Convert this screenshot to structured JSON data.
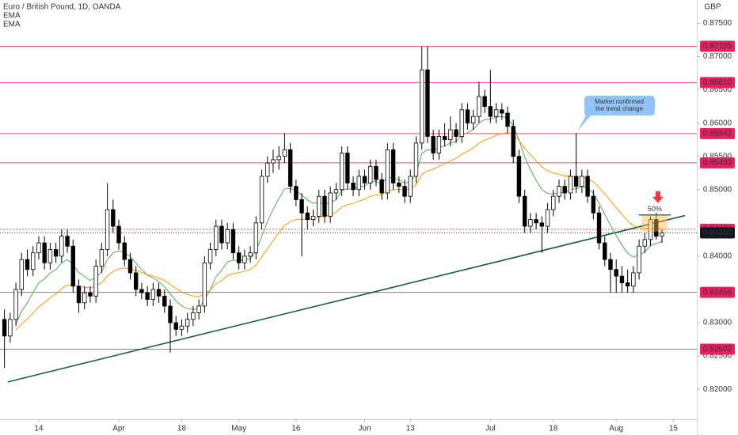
{
  "chart_data": {
    "type": "candlestick",
    "title": "Euro / British Pound, 1D, OANDA",
    "indicators": [
      {
        "name": "EMA",
        "color": "#4caf50"
      },
      {
        "name": "EMA",
        "color": "#ff9800"
      }
    ],
    "currency": "GBP",
    "open": [
      0.8305,
      0.828,
      0.8305,
      0.835,
      0.8395,
      0.838,
      0.8405,
      0.842,
      0.839,
      0.841,
      0.84,
      0.843,
      0.8415,
      0.8355,
      0.833,
      0.8345,
      0.834,
      0.8385,
      0.841,
      0.847,
      0.8445,
      0.842,
      0.8395,
      0.8375,
      0.835,
      0.8345,
      0.8335,
      0.835,
      0.834,
      0.8325,
      0.83,
      0.829,
      0.8295,
      0.8305,
      0.8315,
      0.8325,
      0.839,
      0.841,
      0.8445,
      0.842,
      0.844,
      0.8405,
      0.839,
      0.84,
      0.8405,
      0.845,
      0.852,
      0.854,
      0.8545,
      0.855,
      0.856,
      0.8505,
      0.8485,
      0.8465,
      0.8455,
      0.846,
      0.849,
      0.846,
      0.8495,
      0.85,
      0.8555,
      0.851,
      0.85,
      0.852,
      0.851,
      0.8535,
      0.8515,
      0.8495,
      0.856,
      0.851,
      0.8505,
      0.849,
      0.852,
      0.857,
      0.868,
      0.858,
      0.8555,
      0.858,
      0.8575,
      0.859,
      0.858,
      0.862,
      0.86,
      0.861,
      0.864,
      0.8625,
      0.861,
      0.862,
      0.8615,
      0.8595,
      0.855,
      0.849,
      0.8445,
      0.8455,
      0.845,
      0.8445,
      0.847,
      0.849,
      0.8505,
      0.8495,
      0.852,
      0.8505,
      0.852,
      0.849,
      0.8465,
      0.842,
      0.8395,
      0.838,
      0.837,
      0.836,
      0.8355,
      0.8375,
      0.8415,
      0.8425,
      0.8455,
      0.843
    ],
    "high": [
      0.832,
      0.8315,
      0.836,
      0.8405,
      0.841,
      0.8415,
      0.843,
      0.843,
      0.842,
      0.842,
      0.844,
      0.844,
      0.8425,
      0.8365,
      0.8355,
      0.8355,
      0.8395,
      0.842,
      0.851,
      0.8485,
      0.8455,
      0.843,
      0.8405,
      0.8385,
      0.836,
      0.8355,
      0.836,
      0.836,
      0.835,
      0.8335,
      0.831,
      0.8305,
      0.8315,
      0.8325,
      0.8335,
      0.84,
      0.842,
      0.8455,
      0.8455,
      0.845,
      0.845,
      0.8415,
      0.841,
      0.8415,
      0.846,
      0.853,
      0.855,
      0.856,
      0.8565,
      0.8585,
      0.857,
      0.8515,
      0.8495,
      0.8475,
      0.847,
      0.85,
      0.85,
      0.8505,
      0.851,
      0.8565,
      0.8565,
      0.852,
      0.853,
      0.853,
      0.8545,
      0.8545,
      0.8525,
      0.857,
      0.857,
      0.852,
      0.8515,
      0.853,
      0.858,
      0.8715,
      0.8715,
      0.859,
      0.859,
      0.86,
      0.861,
      0.86,
      0.863,
      0.863,
      0.862,
      0.8662,
      0.865,
      0.868,
      0.863,
      0.863,
      0.8625,
      0.8605,
      0.856,
      0.85,
      0.8465,
      0.8465,
      0.846,
      0.848,
      0.85,
      0.8515,
      0.8515,
      0.853,
      0.8585,
      0.853,
      0.853,
      0.85,
      0.8475,
      0.843,
      0.8405,
      0.8395,
      0.8385,
      0.838,
      0.8385,
      0.8425,
      0.8435,
      0.846,
      0.8465,
      0.844
    ],
    "low": [
      0.8232,
      0.827,
      0.8295,
      0.834,
      0.837,
      0.837,
      0.8395,
      0.838,
      0.838,
      0.839,
      0.839,
      0.8405,
      0.8345,
      0.8315,
      0.832,
      0.833,
      0.833,
      0.8375,
      0.84,
      0.8435,
      0.841,
      0.8385,
      0.8365,
      0.834,
      0.8335,
      0.8325,
      0.8325,
      0.833,
      0.8315,
      0.8255,
      0.828,
      0.828,
      0.8285,
      0.8295,
      0.8305,
      0.8315,
      0.838,
      0.84,
      0.841,
      0.841,
      0.8395,
      0.838,
      0.838,
      0.839,
      0.8395,
      0.844,
      0.851,
      0.8525,
      0.853,
      0.854,
      0.8495,
      0.8475,
      0.84,
      0.844,
      0.8445,
      0.845,
      0.845,
      0.845,
      0.8485,
      0.849,
      0.85,
      0.849,
      0.849,
      0.85,
      0.85,
      0.8505,
      0.8485,
      0.8485,
      0.85,
      0.8495,
      0.848,
      0.848,
      0.851,
      0.856,
      0.857,
      0.8545,
      0.8545,
      0.8565,
      0.8565,
      0.857,
      0.857,
      0.859,
      0.859,
      0.86,
      0.8615,
      0.86,
      0.86,
      0.8605,
      0.8585,
      0.854,
      0.848,
      0.8435,
      0.8435,
      0.844,
      0.8405,
      0.8435,
      0.846,
      0.848,
      0.8485,
      0.8485,
      0.8495,
      0.8495,
      0.848,
      0.8455,
      0.841,
      0.8385,
      0.8345,
      0.8345,
      0.8345,
      0.8345,
      0.8345,
      0.8365,
      0.8405,
      0.8415,
      0.8425,
      0.842
    ],
    "close": [
      0.828,
      0.8305,
      0.835,
      0.8395,
      0.838,
      0.8405,
      0.842,
      0.839,
      0.841,
      0.84,
      0.843,
      0.8415,
      0.8355,
      0.833,
      0.8345,
      0.834,
      0.8385,
      0.841,
      0.847,
      0.8445,
      0.842,
      0.8395,
      0.8375,
      0.835,
      0.8345,
      0.8335,
      0.835,
      0.834,
      0.8325,
      0.83,
      0.829,
      0.8295,
      0.8305,
      0.8315,
      0.8325,
      0.839,
      0.841,
      0.8445,
      0.842,
      0.844,
      0.8405,
      0.839,
      0.84,
      0.8405,
      0.845,
      0.852,
      0.854,
      0.8545,
      0.855,
      0.856,
      0.8505,
      0.8485,
      0.8465,
      0.8455,
      0.846,
      0.849,
      0.846,
      0.8495,
      0.85,
      0.8555,
      0.851,
      0.85,
      0.852,
      0.851,
      0.8535,
      0.8515,
      0.8495,
      0.856,
      0.851,
      0.8505,
      0.849,
      0.852,
      0.857,
      0.868,
      0.858,
      0.8555,
      0.858,
      0.8575,
      0.859,
      0.858,
      0.862,
      0.86,
      0.861,
      0.864,
      0.8625,
      0.861,
      0.862,
      0.8615,
      0.8595,
      0.855,
      0.849,
      0.8445,
      0.8455,
      0.845,
      0.8445,
      0.847,
      0.849,
      0.8505,
      0.8495,
      0.852,
      0.8505,
      0.852,
      0.849,
      0.8465,
      0.842,
      0.8395,
      0.838,
      0.837,
      0.836,
      0.8355,
      0.8375,
      0.8415,
      0.8425,
      0.8455,
      0.843,
      0.8435
    ],
    "xlim": [
      -0.78,
      121.1
    ],
    "xticks": [
      {
        "value": 6,
        "label": "14"
      },
      {
        "value": 20,
        "label": "Apr"
      },
      {
        "value": 31,
        "label": "18"
      },
      {
        "value": 41,
        "label": "May"
      },
      {
        "value": 51,
        "label": "16"
      },
      {
        "value": 63,
        "label": "Jun"
      },
      {
        "value": 71,
        "label": "13"
      },
      {
        "value": 85,
        "label": "Jul"
      },
      {
        "value": 96,
        "label": "18"
      },
      {
        "value": 107,
        "label": "Aug"
      },
      {
        "value": 117,
        "label": "15"
      }
    ],
    "ylim": [
      0.8155,
      0.8785
    ],
    "yticks": [
      {
        "value": 0.875,
        "label": "0.87500"
      },
      {
        "value": 0.87,
        "label": "0.87000"
      },
      {
        "value": 0.865,
        "label": "0.86500"
      },
      {
        "value": 0.86,
        "label": "0.86000"
      },
      {
        "value": 0.855,
        "label": "0.85500"
      },
      {
        "value": 0.85,
        "label": "0.85000"
      },
      {
        "value": 0.84,
        "label": "0.84000"
      },
      {
        "value": 0.83,
        "label": "0.83000"
      },
      {
        "value": 0.825,
        "label": "0.82500"
      },
      {
        "value": 0.82,
        "label": "0.82000"
      }
    ],
    "levels": [
      0.87155,
      {
        "value": 0.8661,
        "label": "0.86610"
      },
      0.85842,
      0.85403,
      0.84404,
      0.83456,
      0.82602
    ],
    "level_color": "#e91e63",
    "last_price": {
      "value": 0.8435,
      "label": "0.84350"
    },
    "trendline": {
      "x": [
        0.6,
        119
      ],
      "y": [
        0.8211,
        0.8461
      ],
      "color": "#1b5e3b"
    },
    "fib": {
      "label": "50%",
      "zone": [
        0.8437,
        0.8462
      ],
      "x": [
        111.5,
        116
      ]
    },
    "annotation": [
      "Market confirmed",
      "the trend change"
    ]
  }
}
